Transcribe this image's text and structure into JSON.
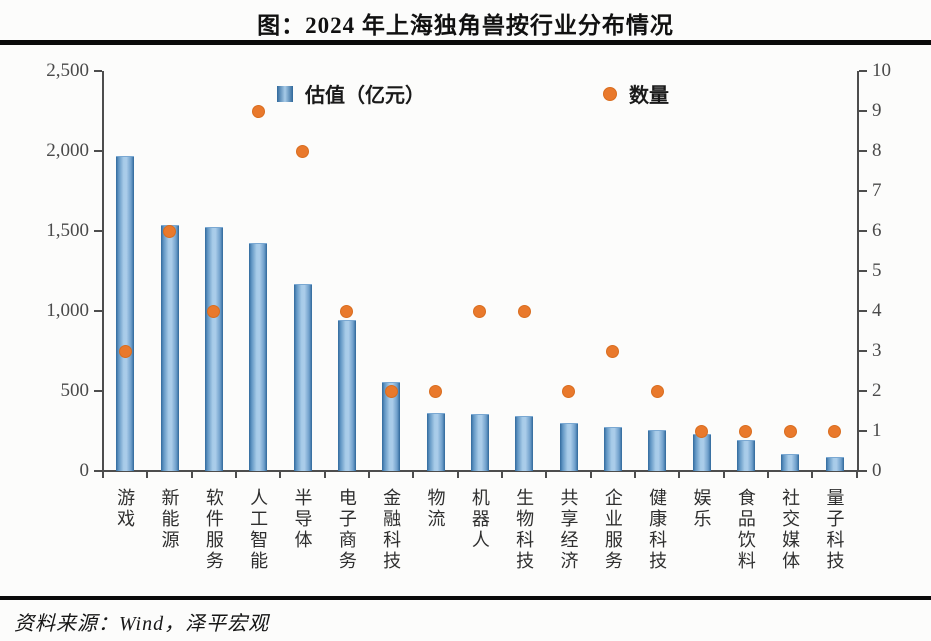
{
  "title": "图：2024 年上海独角兽按行业分布情况",
  "footer": {
    "source": "资料来源：Wind，泽平宏观"
  },
  "colors": {
    "bar_light": "#a7cbe8",
    "bar_dark": "#31699c",
    "dot_orange": "#e9792c",
    "axis_gray": "#4d4d4d",
    "rule_black": "#0a0a0a"
  },
  "legend": [
    {
      "label": "估值（亿元）",
      "marker": "bar-square"
    },
    {
      "label": "数量",
      "marker": "orange-dot"
    }
  ],
  "chart_data": {
    "type": "bar",
    "title": "图：2024 年上海独角兽按行业分布情况",
    "categories": [
      "游戏",
      "新能源",
      "软件服务",
      "人工智能",
      "半导体",
      "电子商务",
      "金融科技",
      "物流",
      "机器人",
      "生物科技",
      "共享经济",
      "企业服务",
      "健康科技",
      "娱乐",
      "食品饮料",
      "社交媒体",
      "量子科技"
    ],
    "series": [
      {
        "name": "估值（亿元）",
        "type": "bar",
        "axis": "left",
        "values": [
          1960,
          1530,
          1520,
          1420,
          1160,
          940,
          550,
          355,
          350,
          335,
          295,
          270,
          250,
          225,
          190,
          100,
          80
        ]
      },
      {
        "name": "数量",
        "type": "scatter",
        "axis": "right",
        "values": [
          3,
          6,
          4,
          9,
          8,
          4,
          2,
          2,
          4,
          4,
          2,
          3,
          2,
          1,
          1,
          1,
          1
        ]
      }
    ],
    "left_axis": {
      "min": 0,
      "max": 2500,
      "step": 500,
      "tick_labels": [
        "0",
        "500",
        "1,000",
        "1,500",
        "2,000",
        "2,500"
      ]
    },
    "right_axis": {
      "min": 0,
      "max": 10,
      "step": 1,
      "tick_labels": [
        "0",
        "1",
        "2",
        "3",
        "4",
        "5",
        "6",
        "7",
        "8",
        "9",
        "10"
      ]
    },
    "grid": false,
    "legend_position": "top-inside"
  }
}
